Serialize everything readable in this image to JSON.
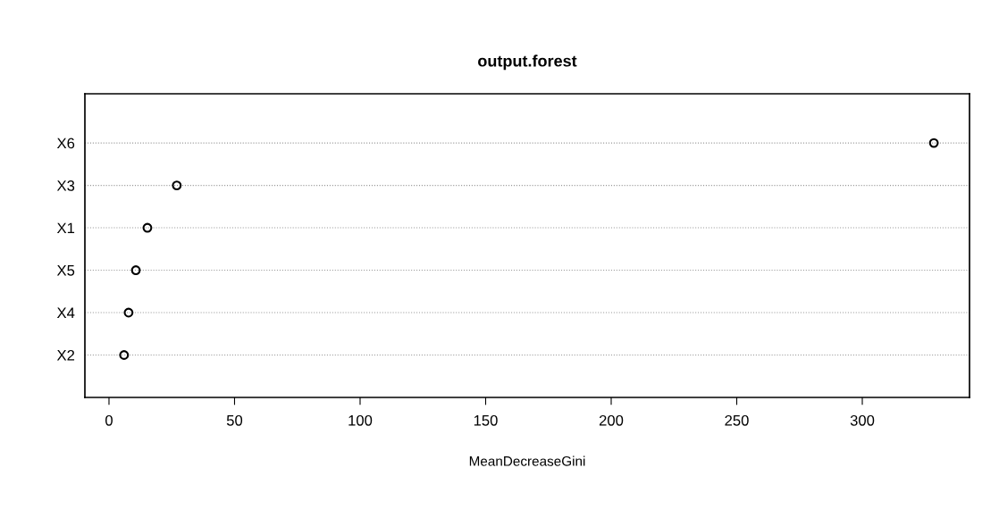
{
  "chart_data": {
    "type": "scatter",
    "title": "output.forest",
    "xlabel": "MeanDecreaseGini",
    "orientation": "horizontal",
    "categories": [
      "X6",
      "X3",
      "X1",
      "X5",
      "X4",
      "X2"
    ],
    "series": [
      {
        "color": "#000000",
        "values": [
          328.5,
          27,
          15.3,
          10.7,
          7.8,
          6
        ]
      }
    ],
    "xlim": [
      -9.6,
      342.7
    ],
    "xticks": [
      0,
      50,
      100,
      150,
      200,
      250,
      300
    ],
    "grid": "y",
    "marker": "circle",
    "legend": false
  }
}
